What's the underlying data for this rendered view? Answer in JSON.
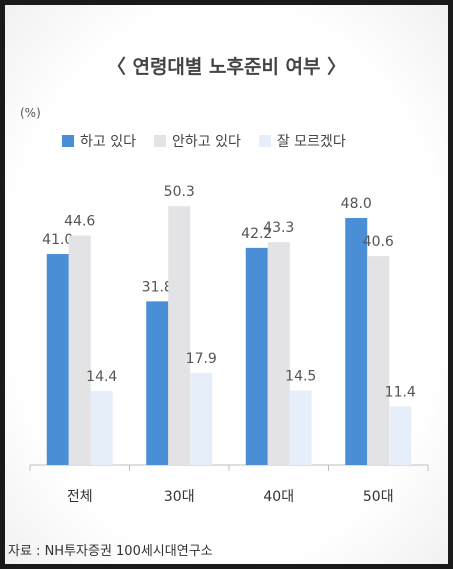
{
  "chart_data": {
    "type": "bar",
    "title": "〈 연령대별 노후준비 여부 〉",
    "unit_label": "(%)",
    "categories": [
      "전체",
      "30대",
      "40대",
      "50대"
    ],
    "series": [
      {
        "name": "하고 있다",
        "color": "#4a8fd6",
        "values": [
          41.0,
          31.8,
          42.2,
          48.0
        ],
        "labels": [
          "41.0",
          "31.8",
          "42.2",
          "48.0"
        ]
      },
      {
        "name": "안하고 있다",
        "color": "#e3e3e5",
        "values": [
          44.6,
          50.3,
          43.3,
          40.6
        ],
        "labels": [
          "44.6",
          "50.3",
          "43.3",
          "40.6"
        ]
      },
      {
        "name": "잘 모르겠다",
        "color": "#e6eff9",
        "values": [
          14.4,
          17.9,
          14.5,
          11.4
        ],
        "labels": [
          "14.4",
          "17.9",
          "14.5",
          "11.4"
        ]
      }
    ],
    "ylim": [
      0,
      55
    ],
    "grid": false,
    "legend_position": "top"
  },
  "source": "자료 : NH투자증권  100세시대연구소"
}
